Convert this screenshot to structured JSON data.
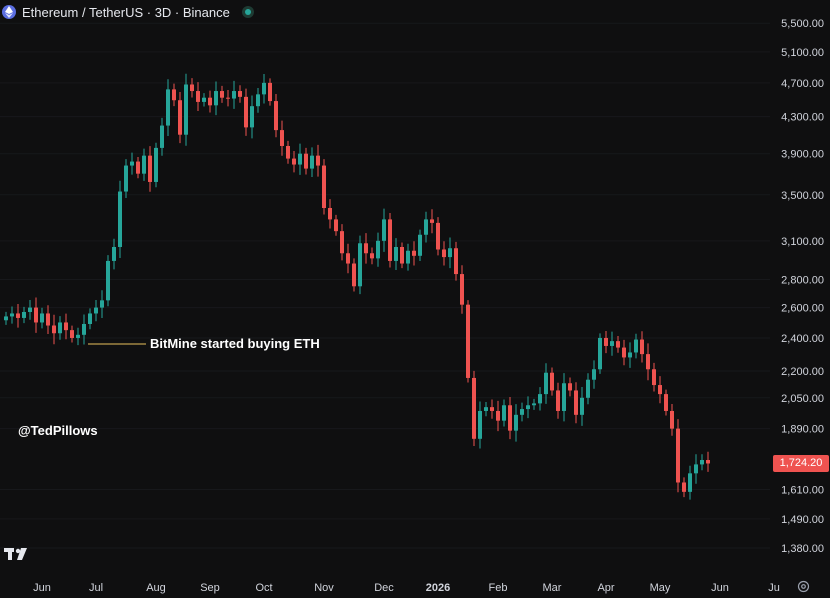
{
  "header": {
    "title": "Ethereum / TetherUS · 3D · Binance"
  },
  "annotation": {
    "text": "BitMine started buying ETH"
  },
  "watermark": {
    "text": "@TedPillows"
  },
  "last_price": {
    "value": "1,724.20"
  },
  "colors": {
    "up": "#26a69a",
    "down": "#ef5350",
    "background": "#0f0f10",
    "annotation_line": "#e8c25b"
  },
  "icons": {
    "symbol": "ethereum-icon",
    "status": "market-open-dot-icon",
    "logo": "tradingview-logo-icon",
    "settings": "gear-icon"
  },
  "chart_data": {
    "type": "candlestick",
    "title": "Ethereum / TetherUS · 3D · Binance",
    "y_scale": "log",
    "ylim": [
      1330,
      5650
    ],
    "y_ticks": [
      {
        "value": 5500,
        "label": "5,500.00"
      },
      {
        "value": 5100,
        "label": "5,100.00"
      },
      {
        "value": 4700,
        "label": "4,700.00"
      },
      {
        "value": 4300,
        "label": "4,300.00"
      },
      {
        "value": 3900,
        "label": "3,900.00"
      },
      {
        "value": 3500,
        "label": "3,500.00"
      },
      {
        "value": 3100,
        "label": "3,100.00"
      },
      {
        "value": 2800,
        "label": "2,800.00"
      },
      {
        "value": 2600,
        "label": "2,600.00"
      },
      {
        "value": 2400,
        "label": "2,400.00"
      },
      {
        "value": 2200,
        "label": "2,200.00"
      },
      {
        "value": 2050,
        "label": "2,050.00"
      },
      {
        "value": 1890,
        "label": "1,890.00"
      },
      {
        "value": 1724.2,
        "label": "1,724.20"
      },
      {
        "value": 1610,
        "label": "1,610.00"
      },
      {
        "value": 1490,
        "label": "1,490.00"
      },
      {
        "value": 1380,
        "label": "1,380.00"
      }
    ],
    "x_ticks": [
      {
        "label": "Jun",
        "index": 6
      },
      {
        "label": "Jul",
        "index": 15
      },
      {
        "label": "Aug",
        "index": 25
      },
      {
        "label": "Sep",
        "index": 34
      },
      {
        "label": "Oct",
        "index": 43
      },
      {
        "label": "Nov",
        "index": 53
      },
      {
        "label": "Dec",
        "index": 63
      },
      {
        "label": "2026",
        "index": 72
      },
      {
        "label": "Feb",
        "index": 82
      },
      {
        "label": "Mar",
        "index": 91
      },
      {
        "label": "Apr",
        "index": 100
      },
      {
        "label": "May",
        "index": 109
      },
      {
        "label": "Jun",
        "index": 119
      },
      {
        "label": "Ju",
        "index": 128
      }
    ],
    "last_price": 1724.2,
    "annotation_index": 11,
    "close": [
      2540,
      2560,
      2530,
      2570,
      2600,
      2500,
      2560,
      2480,
      2430,
      2500,
      2450,
      2400,
      2420,
      2490,
      2560,
      2600,
      2650,
      2940,
      3050,
      3530,
      3780,
      3820,
      3700,
      3880,
      3620,
      3960,
      4200,
      4620,
      4490,
      4100,
      4680,
      4600,
      4470,
      4520,
      4430,
      4600,
      4520,
      4510,
      4600,
      4530,
      4180,
      4420,
      4560,
      4700,
      4480,
      4150,
      3980,
      3850,
      3790,
      3900,
      3750,
      3880,
      3780,
      3380,
      3280,
      3180,
      3000,
      2920,
      2750,
      3080,
      3000,
      2960,
      3100,
      3280,
      2940,
      3050,
      2920,
      3020,
      2980,
      3150,
      3280,
      3250,
      3030,
      2970,
      3040,
      2840,
      2620,
      2160,
      1840,
      1980,
      2000,
      1980,
      1930,
      2010,
      1880,
      1960,
      1990,
      2010,
      2020,
      2070,
      2190,
      2090,
      1980,
      2130,
      2090,
      1960,
      2050,
      2150,
      2210,
      2400,
      2350,
      2380,
      2340,
      2280,
      2310,
      2390,
      2300,
      2210,
      2120,
      2070,
      1980,
      1890,
      1640,
      1600,
      1680,
      1720,
      1740,
      1724.2
    ]
  }
}
